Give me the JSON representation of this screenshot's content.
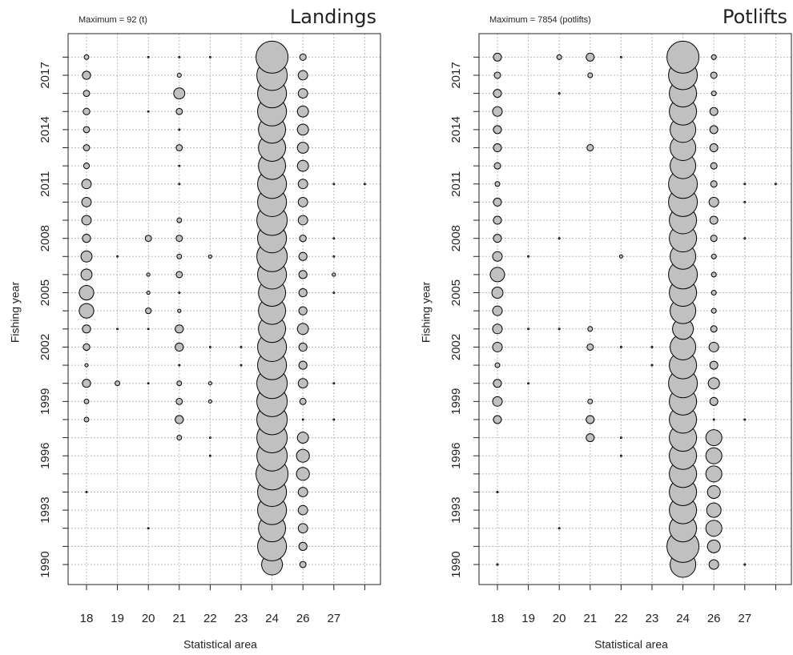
{
  "chart_data": [
    {
      "type": "bubble",
      "title": "Landings",
      "subtitle": "Maximum = 92 (t)",
      "x_label": "Statistical area",
      "y_label": "Fishing year",
      "x_categories": [
        "18",
        "19",
        "20",
        "21",
        "22",
        "23",
        "24",
        "26",
        "27",
        null
      ],
      "y_categories": [
        "1990",
        null,
        null,
        "1993",
        null,
        null,
        "1996",
        null,
        null,
        "1999",
        null,
        null,
        "2002",
        null,
        null,
        "2005",
        null,
        null,
        "2008",
        null,
        null,
        "2011",
        null,
        null,
        "2014",
        null,
        null,
        "2017",
        null
      ],
      "color": "#c0c0c0",
      "grid": true,
      "values": [
        [
          0,
          0,
          0,
          0,
          0,
          0,
          39,
          3.5,
          0,
          0
        ],
        [
          0,
          0,
          0,
          0,
          0,
          0,
          75,
          6,
          0,
          0
        ],
        [
          0,
          0,
          0.2,
          0,
          0,
          0,
          66,
          8,
          0,
          0
        ],
        [
          0,
          0,
          0,
          0,
          0,
          0,
          75,
          8,
          0,
          0
        ],
        [
          0.2,
          0,
          0,
          0,
          0,
          0,
          75,
          8,
          0,
          0
        ],
        [
          0,
          0,
          0,
          0,
          0,
          0,
          92,
          15,
          0,
          0
        ],
        [
          0,
          0,
          0,
          0,
          0.2,
          0,
          83,
          15,
          0,
          0
        ],
        [
          0,
          0,
          0,
          2,
          0.2,
          0,
          83,
          11,
          0,
          0
        ],
        [
          2,
          0,
          0,
          6,
          0,
          0,
          83,
          0.2,
          0.2,
          0
        ],
        [
          2,
          0,
          0,
          3.5,
          1,
          0,
          83,
          3.5,
          0,
          0
        ],
        [
          6,
          2,
          0.2,
          2,
          1,
          0,
          83,
          8,
          0.2,
          0
        ],
        [
          1,
          0,
          0,
          0.2,
          0,
          0.2,
          75,
          6,
          0,
          0
        ],
        [
          4,
          0,
          0,
          6,
          0.2,
          0.2,
          75,
          6,
          0,
          0
        ],
        [
          6,
          0.2,
          0.2,
          6,
          0,
          0,
          66,
          11,
          0,
          0
        ],
        [
          19,
          0,
          3,
          1,
          0,
          0,
          66,
          6,
          0,
          0
        ],
        [
          19,
          0,
          1,
          0.2,
          0,
          0,
          66,
          6,
          0.2,
          0
        ],
        [
          11,
          0,
          1,
          3.5,
          0,
          0,
          75,
          6,
          1,
          0
        ],
        [
          11,
          0.2,
          0,
          2,
          1,
          0,
          83,
          6,
          0.2,
          0
        ],
        [
          6,
          0,
          3.5,
          3.5,
          0,
          0,
          75,
          4,
          0.2,
          0
        ],
        [
          8,
          0,
          0,
          2,
          0,
          0,
          83,
          8,
          0,
          0
        ],
        [
          8,
          0,
          0,
          0,
          0,
          0,
          75,
          8,
          0,
          0
        ],
        [
          8,
          0,
          0,
          0.2,
          0,
          0,
          75,
          8,
          0.2,
          0.2
        ],
        [
          3,
          0,
          0,
          0.2,
          0,
          0,
          66,
          11,
          0,
          0
        ],
        [
          3.5,
          0,
          0,
          3.5,
          0,
          0,
          66,
          11,
          0,
          0
        ],
        [
          3.5,
          0,
          0,
          0.2,
          0,
          0,
          66,
          11,
          0,
          0
        ],
        [
          4,
          0,
          0.2,
          3.5,
          0,
          0,
          75,
          11,
          0,
          0
        ],
        [
          3.5,
          0,
          0,
          11,
          0,
          0,
          75,
          8,
          0,
          0
        ],
        [
          6,
          0,
          0,
          1.5,
          0,
          0,
          83,
          8,
          0,
          0
        ],
        [
          2,
          0,
          0.2,
          0.2,
          0.2,
          0,
          92,
          3.7,
          0,
          0
        ]
      ]
    },
    {
      "type": "bubble",
      "title": "Potlifts",
      "subtitle": "Maximum = 7854 (potlifts)",
      "x_label": "Statistical area",
      "y_label": "Fishing year",
      "x_categories": [
        "18",
        "19",
        "20",
        "21",
        "22",
        "23",
        "24",
        "26",
        "27",
        null
      ],
      "y_categories": [
        "1990",
        null,
        null,
        "1993",
        null,
        null,
        "1996",
        null,
        null,
        "1999",
        null,
        null,
        "2002",
        null,
        null,
        "2005",
        null,
        null,
        "2008",
        null,
        null,
        "2011",
        null,
        null,
        "2014",
        null,
        null,
        "2017",
        null
      ],
      "color": "#c0c0c0",
      "grid": true,
      "values": [
        [
          20,
          0,
          0,
          0,
          0,
          0,
          5027,
          707,
          20,
          0
        ],
        [
          0,
          0,
          0,
          0,
          0,
          0,
          7854,
          1257,
          0,
          0
        ],
        [
          0,
          0,
          20,
          0,
          0,
          0,
          5674,
          1964,
          0,
          0
        ],
        [
          0,
          0,
          0,
          0,
          0,
          0,
          5674,
          1590,
          0,
          0
        ],
        [
          20,
          0,
          0,
          0,
          0,
          0,
          5674,
          1257,
          0,
          0
        ],
        [
          0,
          0,
          0,
          0,
          0,
          0,
          5674,
          1964,
          0,
          0
        ],
        [
          0,
          0,
          0,
          0,
          20,
          0,
          5674,
          1964,
          0,
          0
        ],
        [
          0,
          0,
          0,
          491,
          20,
          0,
          5674,
          1964,
          0,
          0
        ],
        [
          491,
          0,
          0,
          491,
          0,
          0,
          5674,
          20,
          20,
          0
        ],
        [
          707,
          0,
          0,
          177,
          0,
          0,
          5674,
          491,
          0,
          0
        ],
        [
          491,
          20,
          0,
          0,
          0,
          0,
          6362,
          962,
          0,
          0
        ],
        [
          177,
          0,
          0,
          0,
          0,
          20,
          5674,
          491,
          0,
          0
        ],
        [
          707,
          0,
          0,
          314,
          20,
          20,
          5027,
          707,
          0,
          0
        ],
        [
          707,
          20,
          20,
          177,
          0,
          0,
          3318,
          314,
          0,
          0
        ],
        [
          707,
          0,
          0,
          0,
          0,
          0,
          5027,
          177,
          0,
          0
        ],
        [
          962,
          0,
          0,
          0,
          0,
          0,
          5674,
          177,
          0,
          0
        ],
        [
          1590,
          0,
          0,
          0,
          0,
          0,
          6362,
          177,
          0,
          0
        ],
        [
          707,
          20,
          0,
          0,
          79,
          0,
          5027,
          177,
          0,
          0
        ],
        [
          491,
          0,
          20,
          0,
          0,
          0,
          5674,
          314,
          20,
          0
        ],
        [
          491,
          0,
          0,
          0,
          0,
          0,
          5674,
          491,
          0,
          0
        ],
        [
          491,
          0,
          0,
          0,
          0,
          0,
          6362,
          707,
          20,
          0
        ],
        [
          177,
          0,
          0,
          0,
          0,
          0,
          6362,
          314,
          20,
          20
        ],
        [
          314,
          0,
          0,
          0,
          0,
          0,
          5027,
          314,
          0,
          0
        ],
        [
          491,
          0,
          0,
          314,
          0,
          0,
          5027,
          491,
          0,
          0
        ],
        [
          491,
          0,
          0,
          0,
          0,
          0,
          5027,
          491,
          0,
          0
        ],
        [
          707,
          0,
          0,
          0,
          0,
          0,
          5674,
          491,
          0,
          0
        ],
        [
          491,
          0,
          20,
          0,
          0,
          0,
          5674,
          177,
          0,
          0
        ],
        [
          314,
          0,
          0,
          177,
          0,
          0,
          6362,
          314,
          0,
          0
        ],
        [
          491,
          0,
          177,
          491,
          20,
          0,
          7854,
          177,
          0,
          0
        ]
      ]
    }
  ]
}
